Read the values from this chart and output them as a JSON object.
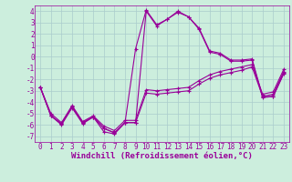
{
  "xlabel": "Windchill (Refroidissement éolien,°C)",
  "bg_color": "#cceedd",
  "line_color": "#990099",
  "grid_color": "#aacccc",
  "xlim": [
    -0.5,
    23.5
  ],
  "ylim": [
    -7.5,
    4.5
  ],
  "xticks": [
    0,
    1,
    2,
    3,
    4,
    5,
    6,
    7,
    8,
    9,
    10,
    11,
    12,
    13,
    14,
    15,
    16,
    17,
    18,
    19,
    20,
    21,
    22,
    23
  ],
  "yticks": [
    -7,
    -6,
    -5,
    -4,
    -3,
    -2,
    -1,
    0,
    1,
    2,
    3,
    4
  ],
  "line1_x": [
    0,
    1,
    2,
    3,
    4,
    5,
    6,
    7,
    8,
    9,
    10,
    11,
    12,
    13,
    14,
    15,
    16,
    17,
    18,
    19,
    20,
    21,
    22,
    23
  ],
  "line1_y": [
    -2.7,
    -5.2,
    -6.0,
    -4.5,
    -5.9,
    -5.3,
    -6.6,
    -6.8,
    -5.8,
    0.7,
    4.1,
    2.8,
    3.3,
    4.0,
    3.5,
    2.5,
    0.5,
    0.3,
    -0.3,
    -0.3,
    -0.2,
    -3.5,
    -3.5,
    -1.4
  ],
  "line2_x": [
    0,
    1,
    2,
    3,
    4,
    5,
    6,
    7,
    8,
    9,
    10,
    11,
    12,
    13,
    14,
    15,
    16,
    17,
    18,
    19,
    20,
    21,
    22,
    23
  ],
  "line2_y": [
    -2.7,
    -5.2,
    -5.9,
    -4.4,
    -5.8,
    -5.3,
    -6.3,
    -6.7,
    -5.8,
    -5.8,
    4.0,
    2.7,
    3.3,
    3.9,
    3.5,
    2.4,
    0.4,
    0.2,
    -0.4,
    -0.4,
    -0.3,
    -3.6,
    -3.5,
    -1.5
  ],
  "line3_x": [
    0,
    1,
    2,
    3,
    4,
    5,
    6,
    7,
    8,
    9,
    10,
    11,
    12,
    13,
    14,
    15,
    16,
    17,
    18,
    19,
    20,
    21,
    22,
    23
  ],
  "line3_y": [
    -2.7,
    -5.2,
    -5.9,
    -4.4,
    -5.8,
    -5.3,
    -6.3,
    -6.7,
    -5.8,
    -5.8,
    -3.2,
    -3.3,
    -3.2,
    -3.1,
    -3.0,
    -2.4,
    -1.9,
    -1.6,
    -1.4,
    -1.2,
    -0.9,
    -3.5,
    -3.3,
    -1.3
  ],
  "line4_x": [
    0,
    1,
    2,
    3,
    4,
    5,
    6,
    7,
    8,
    9,
    10,
    11,
    12,
    13,
    14,
    15,
    16,
    17,
    18,
    19,
    20,
    21,
    22,
    23
  ],
  "line4_y": [
    -2.7,
    -5.0,
    -5.8,
    -4.3,
    -5.7,
    -5.2,
    -6.1,
    -6.5,
    -5.6,
    -5.6,
    -2.9,
    -3.0,
    -2.9,
    -2.8,
    -2.7,
    -2.1,
    -1.6,
    -1.3,
    -1.1,
    -0.9,
    -0.7,
    -3.3,
    -3.1,
    -1.1
  ],
  "tick_fontsize": 5.5,
  "xlabel_fontsize": 6.5
}
